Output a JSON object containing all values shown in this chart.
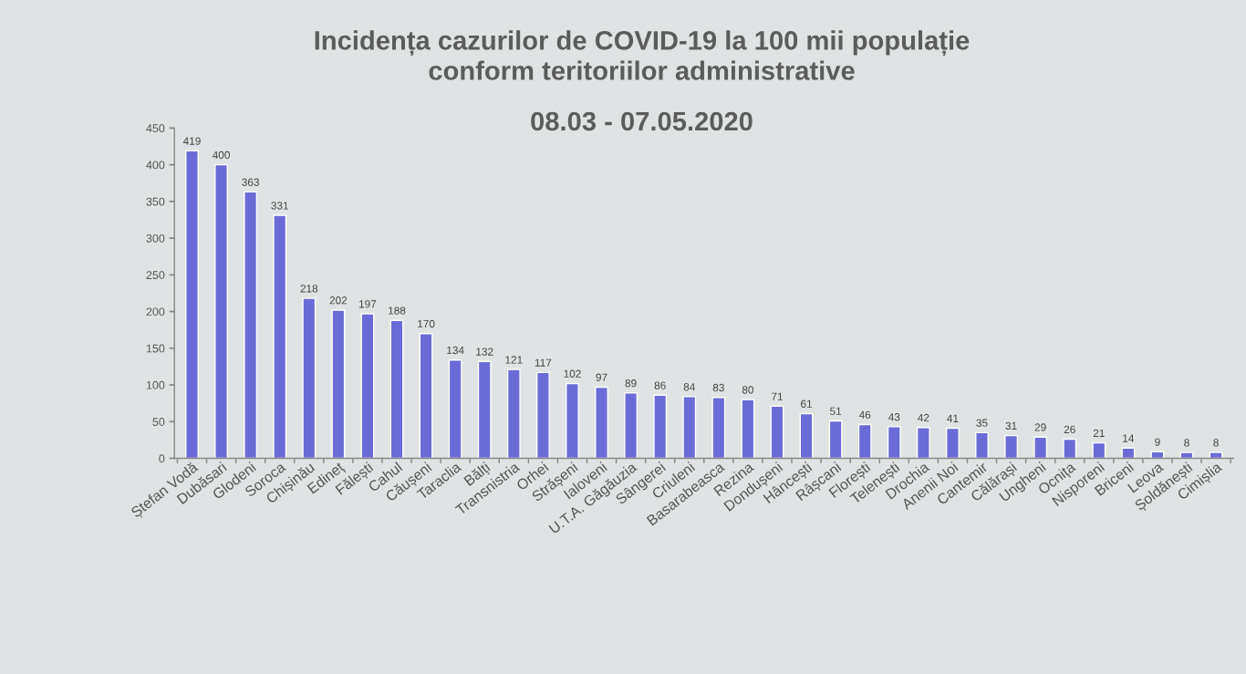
{
  "chart_data": {
    "type": "bar",
    "title": "Incidența cazurilor de COVID-19 la 100 mii populație\nconform teritoriilor administrative",
    "subtitle": "08.03 - 07.05.2020",
    "categories": [
      "Ștefan Vodă",
      "Dubăsari",
      "Glodeni",
      "Soroca",
      "Chișinău",
      "Edineț",
      "Fălești",
      "Cahul",
      "Căușeni",
      "Taraclia",
      "Bălți",
      "Transnistria",
      "Orhei",
      "Strășeni",
      "Ialoveni",
      "U.T.A. Găgăuzia",
      "Sângerei",
      "Criuleni",
      "Basarabeasca",
      "Rezina",
      "Dondușeni",
      "Hâncești",
      "Râșcani",
      "Florești",
      "Telenești",
      "Drochia",
      "Anenii Noi",
      "Cantemir",
      "Călărași",
      "Ungheni",
      "Ocnița",
      "Nisporeni",
      "Briceni",
      "Leova",
      "Șoldănești",
      "Cimișlia"
    ],
    "values": [
      419,
      400,
      363,
      331,
      218,
      202,
      197,
      188,
      170,
      134,
      132,
      121,
      117,
      102,
      97,
      89,
      86,
      84,
      83,
      80,
      71,
      61,
      51,
      46,
      43,
      42,
      41,
      35,
      31,
      29,
      26,
      21,
      14,
      9,
      8,
      8
    ],
    "color": "#6b6bd8",
    "ylim": [
      0,
      450
    ],
    "yticks": [
      0,
      50,
      100,
      150,
      200,
      250,
      300,
      350,
      400,
      450
    ],
    "data_labels": true
  }
}
